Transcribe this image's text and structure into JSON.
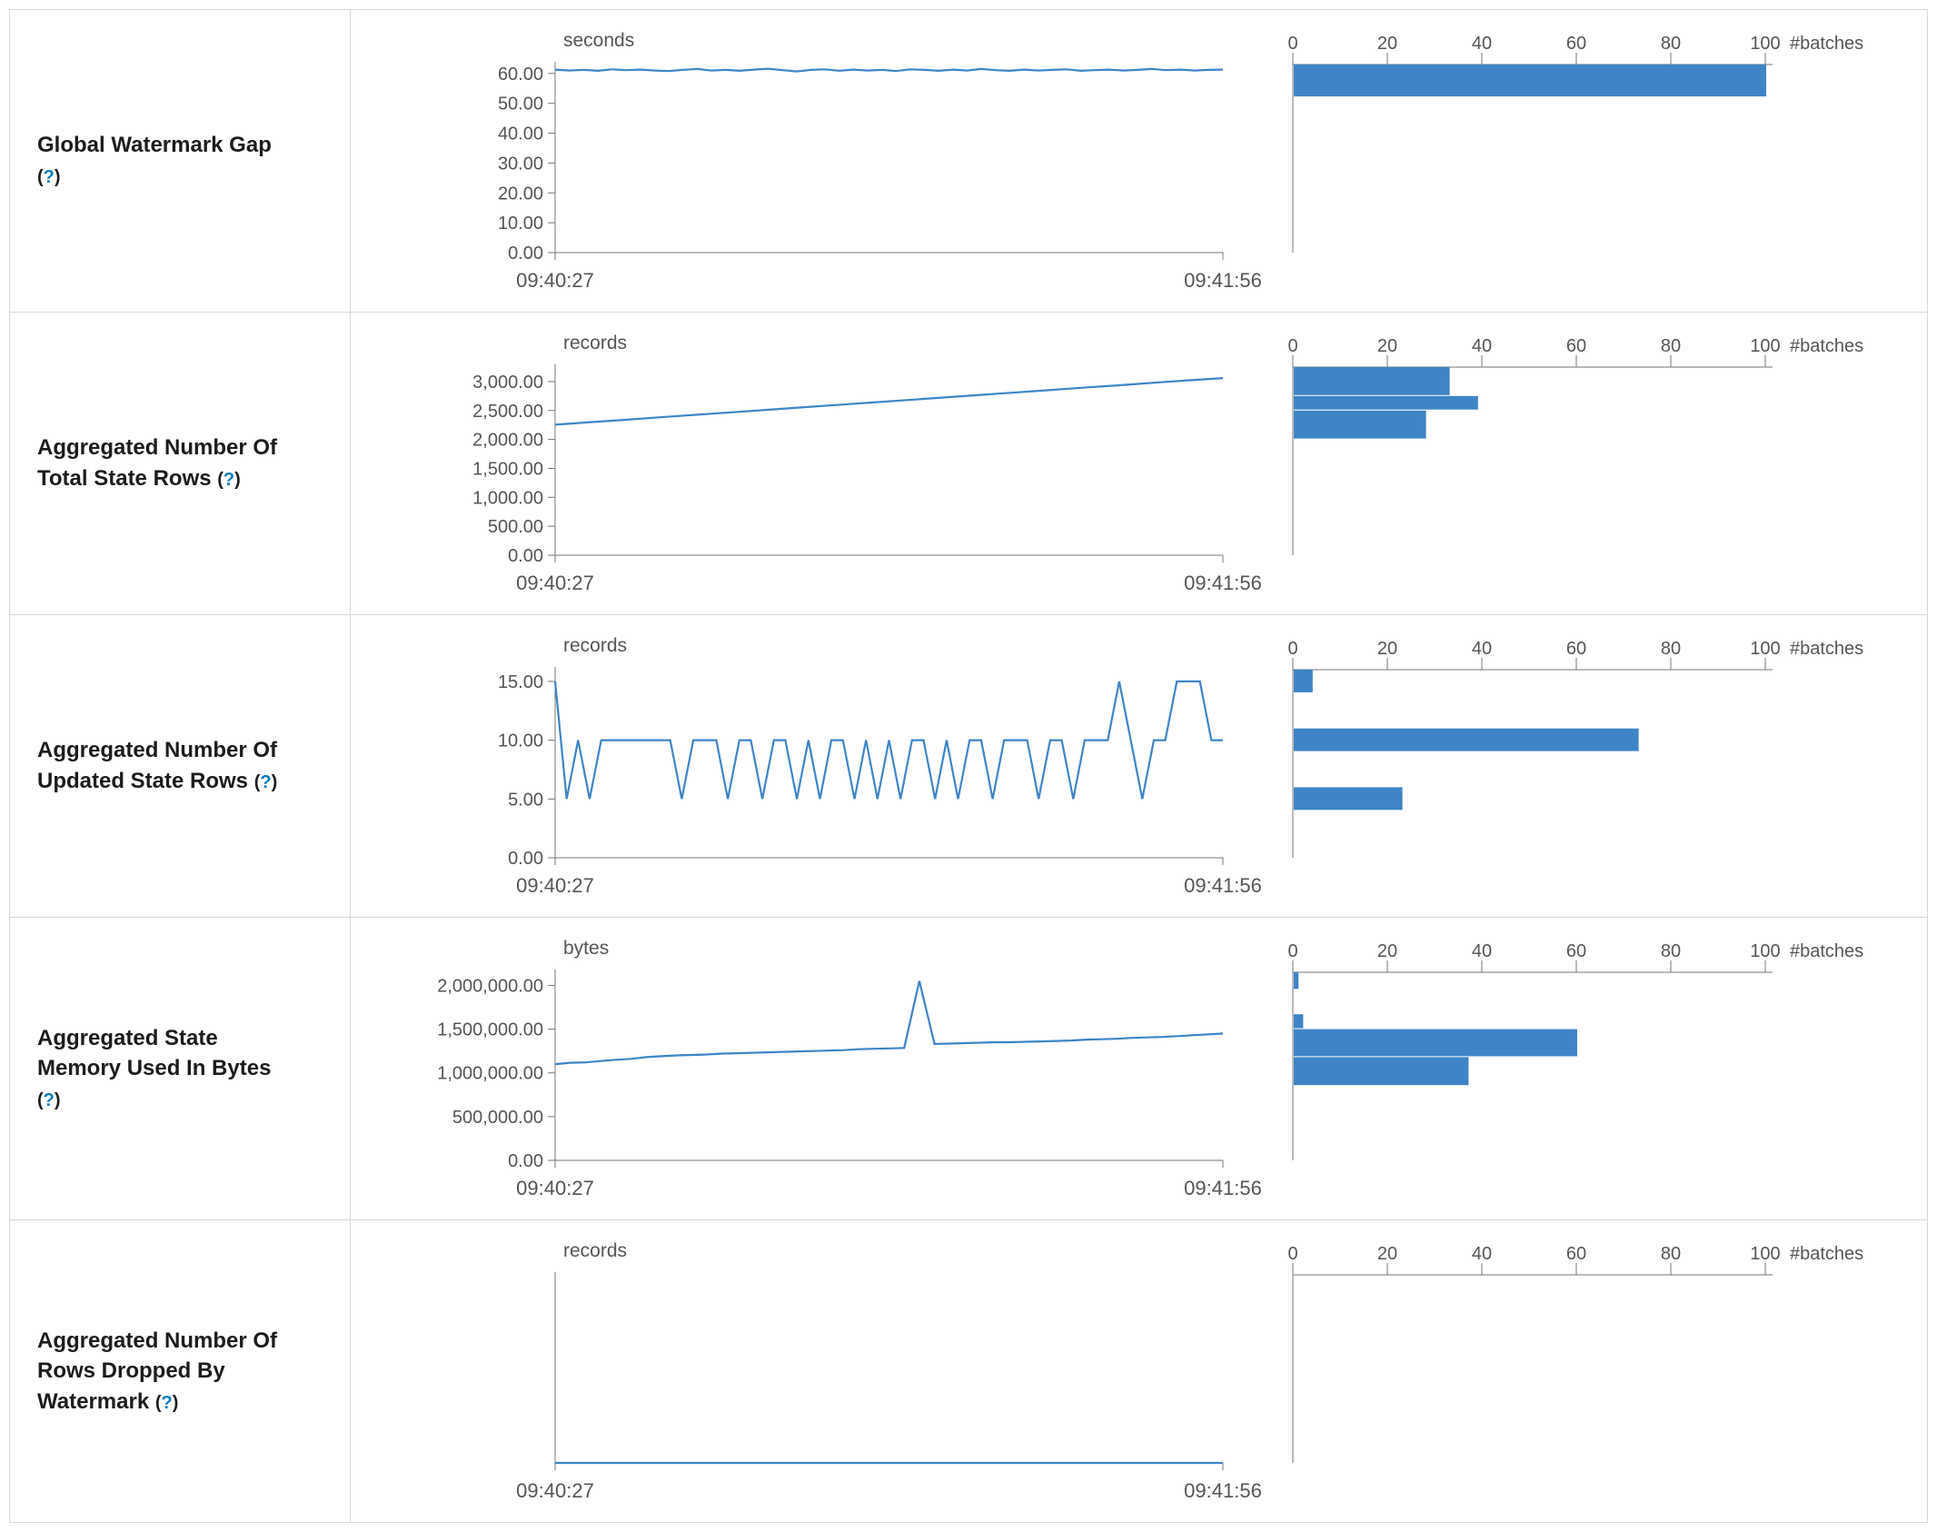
{
  "help_open": "(",
  "help_q": "?",
  "help_close": ")",
  "colors": {
    "accent": "#3d85c6",
    "axis_line": "#777777",
    "tick_text": "#555555",
    "label_text": "#1c1c1c",
    "help_link": "#0b7cba",
    "border": "#d9d9d9"
  },
  "chart_data": [
    {
      "label": "Global Watermark Gap",
      "timeline": {
        "type": "line",
        "unit": "seconds",
        "xticks": [
          "09:40:27",
          "09:41:56"
        ],
        "ylim": [
          0,
          63
        ],
        "ytick_values": [
          0,
          10,
          20,
          30,
          40,
          50,
          60
        ],
        "ytick_labels": [
          "0.00",
          "10.00",
          "20.00",
          "30.00",
          "40.00",
          "50.00",
          "60.00"
        ],
        "values": [
          61.3,
          61.0,
          61.2,
          60.9,
          61.4,
          61.1,
          61.3,
          61.0,
          60.8,
          61.2,
          61.5,
          61.0,
          61.2,
          60.9,
          61.3,
          61.6,
          61.1,
          60.7,
          61.2,
          61.4,
          60.9,
          61.3,
          61.0,
          61.2,
          60.8,
          61.4,
          61.2,
          60.9,
          61.3,
          61.0,
          61.5,
          61.1,
          60.9,
          61.3,
          61.0,
          61.2,
          61.4,
          60.9,
          61.1,
          61.3,
          61.0,
          61.2,
          61.5,
          61.1,
          61.3,
          61.0,
          61.2,
          61.3
        ]
      },
      "histogram": {
        "type": "bar",
        "xlabel": "#batches",
        "xlim": [
          0,
          100
        ],
        "xticks": [
          0,
          20,
          40,
          60,
          80,
          100
        ],
        "bars": [
          {
            "bin": [
              52,
              63
            ],
            "count": 100
          }
        ]
      }
    },
    {
      "label": "Aggregated Number Of Total State Rows",
      "timeline": {
        "type": "line",
        "unit": "records",
        "xticks": [
          "09:40:27",
          "09:41:56"
        ],
        "ylim": [
          0,
          3250
        ],
        "ytick_values": [
          0,
          500,
          1000,
          1500,
          2000,
          2500,
          3000
        ],
        "ytick_labels": [
          "0.00",
          "500.00",
          "1,000.00",
          "1,500.00",
          "2,000.00",
          "2,500.00",
          "3,000.00"
        ],
        "values": [
          2255,
          2298,
          2340,
          2383,
          2425,
          2468,
          2510,
          2553,
          2595,
          2638,
          2680,
          2723,
          2765,
          2808,
          2850,
          2893,
          2935,
          2978,
          3020,
          3060
        ]
      },
      "histogram": {
        "type": "bar",
        "xlabel": "#batches",
        "xlim": [
          0,
          100
        ],
        "xticks": [
          0,
          20,
          40,
          60,
          80,
          100
        ],
        "bars": [
          {
            "bin": [
              2750,
              3250
            ],
            "count": 33
          },
          {
            "bin": [
              2500,
              2750
            ],
            "count": 39
          },
          {
            "bin": [
              2000,
              2500
            ],
            "count": 28
          }
        ]
      }
    },
    {
      "label": "Aggregated Number Of Updated State Rows",
      "timeline": {
        "type": "line",
        "unit": "records",
        "xticks": [
          "09:40:27",
          "09:41:56"
        ],
        "ylim": [
          0,
          16
        ],
        "ytick_values": [
          0,
          5,
          10,
          15
        ],
        "ytick_labels": [
          "0.00",
          "5.00",
          "10.00",
          "15.00"
        ],
        "values": [
          15,
          5,
          10,
          5,
          10,
          10,
          10,
          10,
          10,
          10,
          10,
          5,
          10,
          10,
          10,
          5,
          10,
          10,
          5,
          10,
          10,
          5,
          10,
          5,
          10,
          10,
          5,
          10,
          5,
          10,
          5,
          10,
          10,
          5,
          10,
          5,
          10,
          10,
          5,
          10,
          10,
          10,
          5,
          10,
          10,
          5,
          10,
          10,
          10,
          15,
          10,
          5,
          10,
          10,
          15,
          15,
          15,
          10,
          10
        ]
      },
      "histogram": {
        "type": "bar",
        "xlabel": "#batches",
        "xlim": [
          0,
          100
        ],
        "xticks": [
          0,
          20,
          40,
          60,
          80,
          100
        ],
        "bars": [
          {
            "bin": [
              14,
              16
            ],
            "count": 4
          },
          {
            "bin": [
              9,
              11
            ],
            "count": 73
          },
          {
            "bin": [
              4,
              6
            ],
            "count": 23
          }
        ]
      }
    },
    {
      "label": "Aggregated State Memory Used In Bytes",
      "timeline": {
        "type": "line",
        "unit": "bytes",
        "xticks": [
          "09:40:27",
          "09:41:56"
        ],
        "ylim": [
          0,
          2150000
        ],
        "ytick_values": [
          0,
          500000,
          1000000,
          1500000,
          2000000
        ],
        "ytick_labels": [
          "0.00",
          "500,000.00",
          "1,000,000.00",
          "1,500,000.00",
          "2,000,000.00"
        ],
        "values": [
          1100000,
          1115000,
          1120000,
          1135000,
          1150000,
          1160000,
          1180000,
          1190000,
          1200000,
          1205000,
          1210000,
          1220000,
          1225000,
          1230000,
          1235000,
          1240000,
          1245000,
          1250000,
          1255000,
          1260000,
          1270000,
          1275000,
          1280000,
          1285000,
          2050000,
          1330000,
          1335000,
          1340000,
          1345000,
          1350000,
          1350000,
          1355000,
          1360000,
          1365000,
          1370000,
          1380000,
          1385000,
          1390000,
          1400000,
          1405000,
          1410000,
          1420000,
          1430000,
          1440000,
          1450000
        ]
      },
      "histogram": {
        "type": "bar",
        "xlabel": "#batches",
        "xlim": [
          0,
          100
        ],
        "xticks": [
          0,
          20,
          40,
          60,
          80,
          100
        ],
        "bars": [
          {
            "bin": [
              1950000,
              2150000
            ],
            "count": 1
          },
          {
            "bin": [
              1500000,
              1670000
            ],
            "count": 2
          },
          {
            "bin": [
              1180000,
              1500000
            ],
            "count": 60
          },
          {
            "bin": [
              850000,
              1180000
            ],
            "count": 37
          }
        ]
      }
    },
    {
      "label": "Aggregated Number Of Rows Dropped By Watermark",
      "timeline": {
        "type": "line",
        "unit": "records",
        "xticks": [
          "09:40:27",
          "09:41:56"
        ],
        "ylim": [
          0,
          1
        ],
        "ytick_values": [],
        "ytick_labels": [],
        "values": [
          0,
          0,
          0,
          0,
          0,
          0,
          0,
          0,
          0,
          0,
          0,
          0
        ]
      },
      "histogram": {
        "type": "bar",
        "xlabel": "#batches",
        "xlim": [
          0,
          100
        ],
        "xticks": [
          0,
          20,
          40,
          60,
          80,
          100
        ],
        "bars": []
      }
    }
  ]
}
